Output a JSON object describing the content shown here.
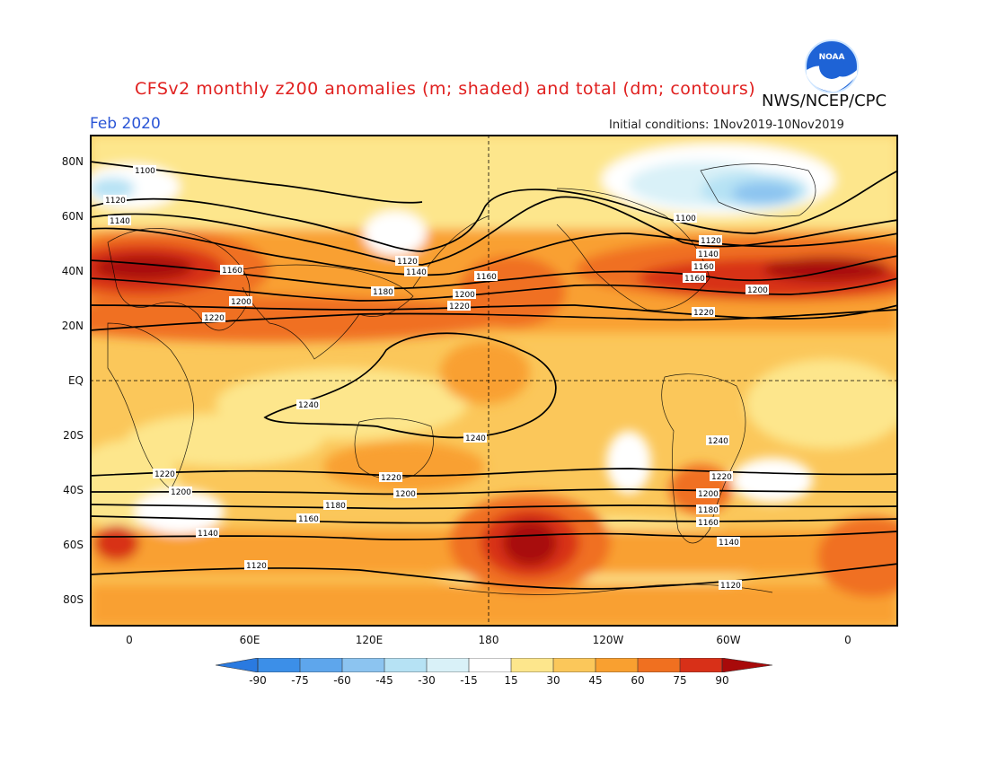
{
  "title": "CFSv2 monthly z200 anomalies (m; shaded) and total (dm; contours)",
  "agency": "NWS/NCEP/CPC",
  "logo": {
    "icon": "noaa-logo",
    "text": "NOAA"
  },
  "month": "Feb 2020",
  "initial_conditions": "Initial conditions: 1Nov2019-10Nov2019",
  "map": {
    "lat_ticks": [
      "80N",
      "60N",
      "40N",
      "20N",
      "EQ",
      "20S",
      "40S",
      "60S",
      "80S"
    ],
    "lon_ticks": [
      "0",
      "60E",
      "120E",
      "180",
      "120W",
      "60W",
      "0"
    ],
    "contour_labels": [
      "1100",
      "1120",
      "1140",
      "1160",
      "1200",
      "1220",
      "1120",
      "1140",
      "1180",
      "1160",
      "1200",
      "1220",
      "1100",
      "1120",
      "1140",
      "1160",
      "1160",
      "1200",
      "1220",
      "1240",
      "1240",
      "1240",
      "1220",
      "1200",
      "1220",
      "1200",
      "1180",
      "1160",
      "1140",
      "1120",
      "1220",
      "1200",
      "1180",
      "1160",
      "1140",
      "1120"
    ],
    "colors": {
      "c_n90": "#2a7ae0",
      "c_n75": "#3c8fe8",
      "c_n60": "#5ea6ec",
      "c_n45": "#8cc4f0",
      "c_n30": "#b6e2f4",
      "c_n15": "#d9f1f8",
      "c_0": "#ffffff",
      "c_15": "#fde68c",
      "c_30": "#fbc75a",
      "c_45": "#f9a030",
      "c_60": "#f07020",
      "c_75": "#d83018",
      "c_90": "#a80a0a"
    }
  },
  "colorbar": {
    "labels": [
      "-90",
      "-75",
      "-60",
      "-45",
      "-30",
      "-15",
      "15",
      "30",
      "45",
      "60",
      "75",
      "90"
    ]
  }
}
